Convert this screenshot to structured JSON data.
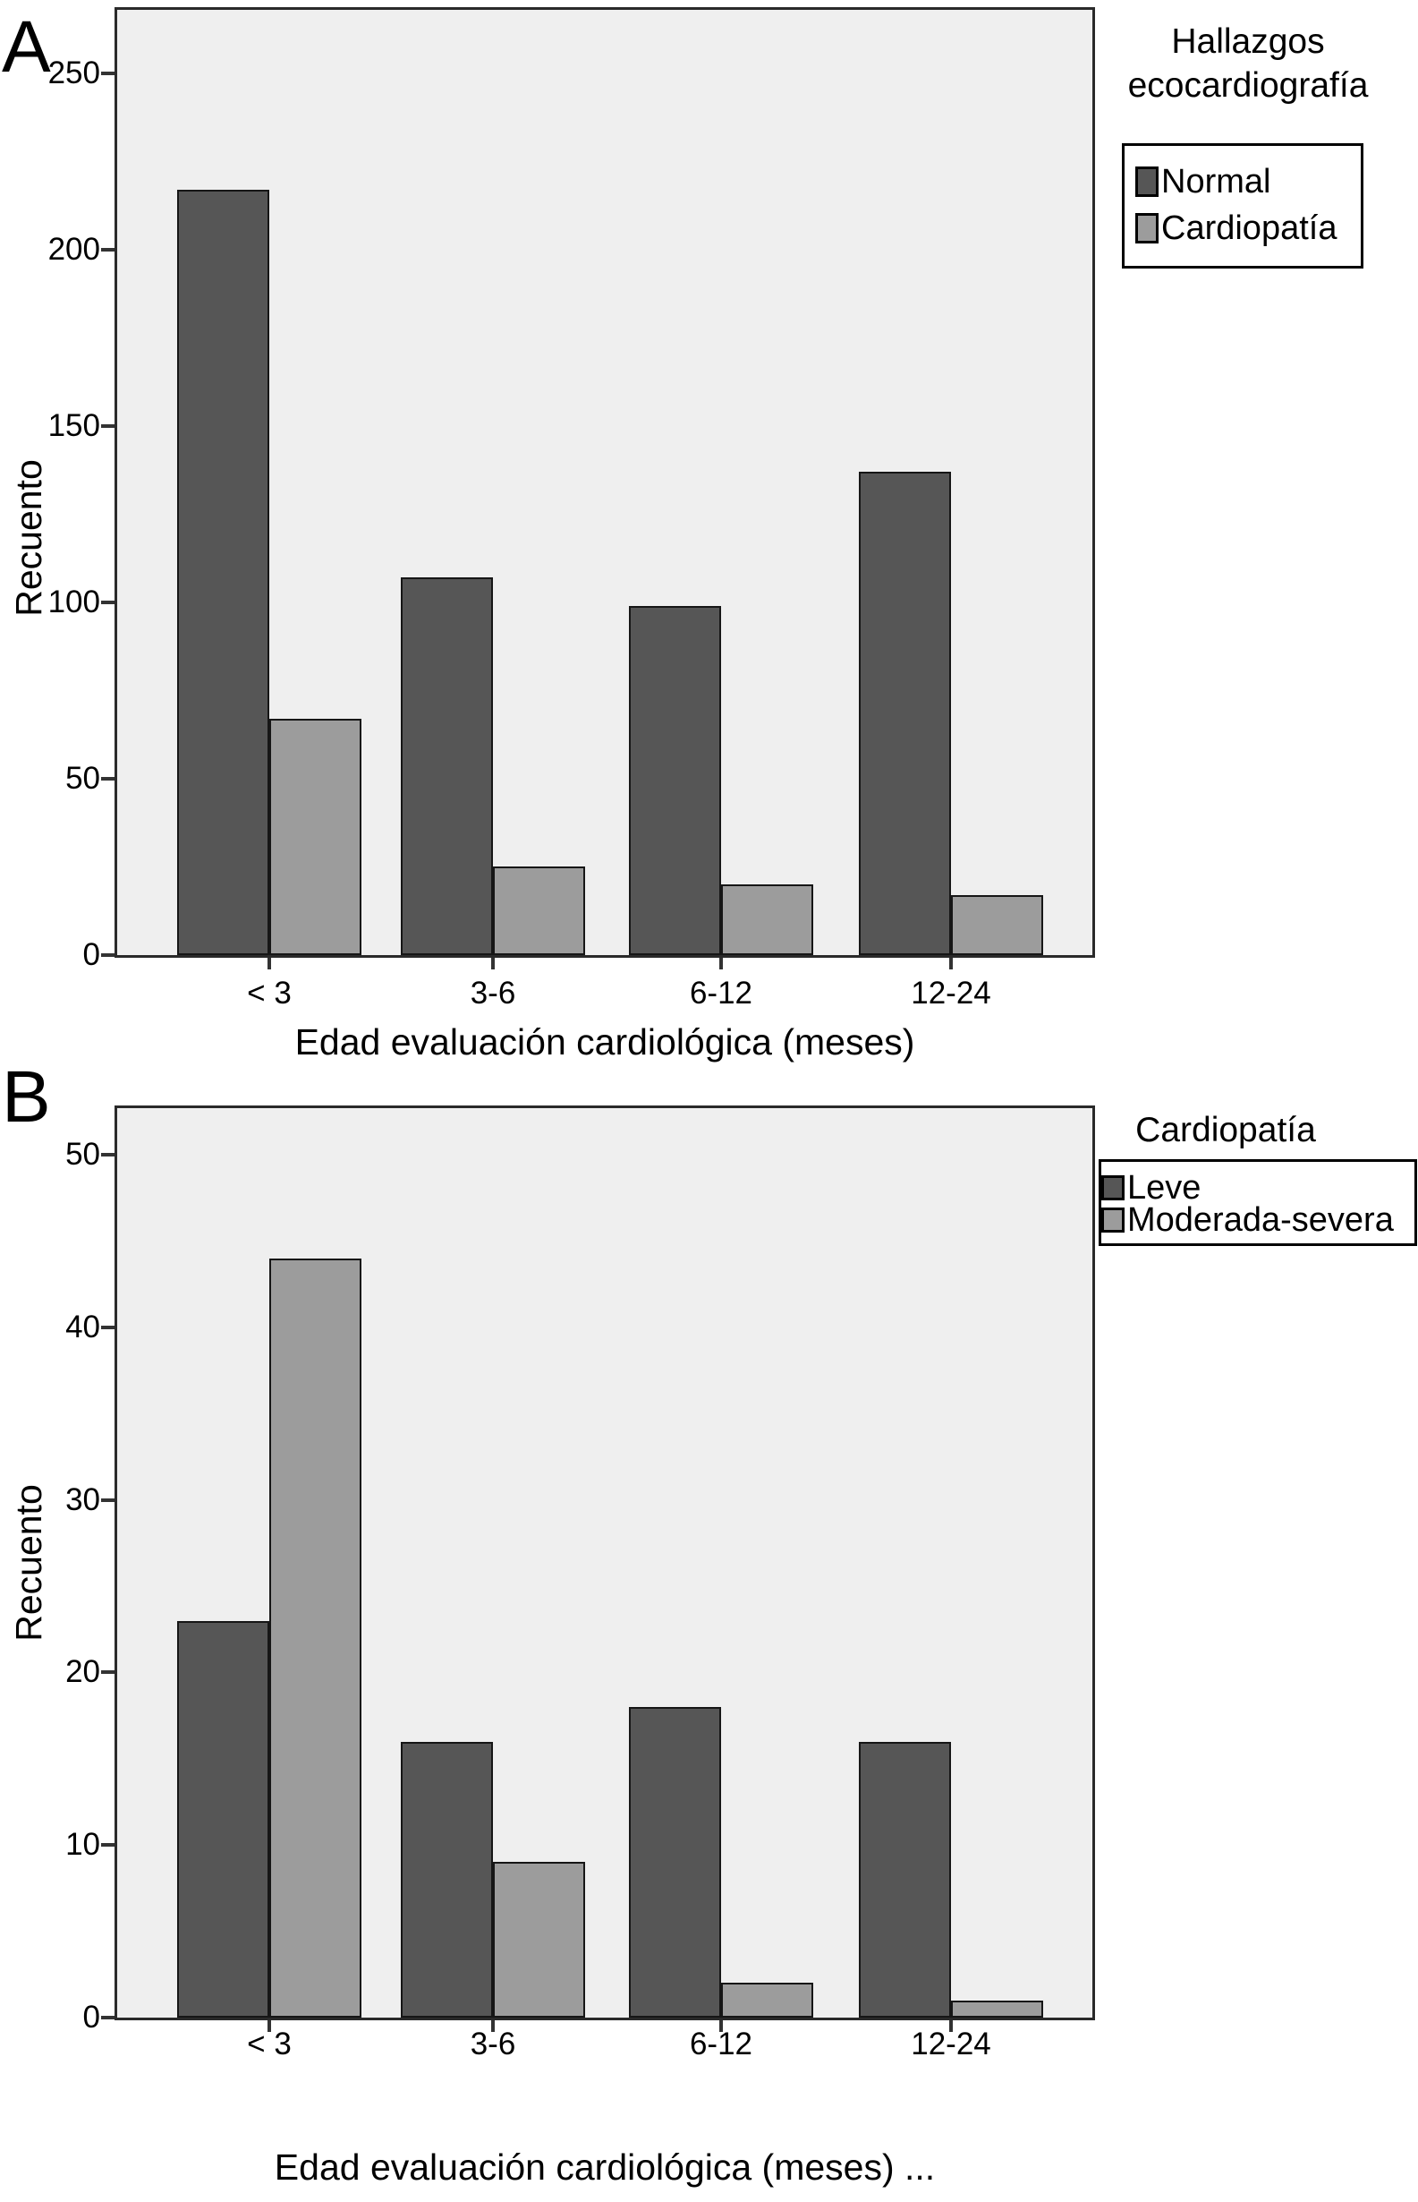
{
  "chart_data": [
    {
      "type": "bar",
      "panel_label": "A",
      "categories": [
        "< 3",
        "3-6",
        "6-12",
        "12-24"
      ],
      "series": [
        {
          "name": "Normal",
          "color_key": "dark",
          "values": [
            217,
            107,
            99,
            137
          ]
        },
        {
          "name": "Cardiopatía",
          "color_key": "light",
          "values": [
            67,
            25,
            20,
            17
          ]
        }
      ],
      "xlabel": "Edad evaluación cardiológica (meses)",
      "ylabel": "Recuento",
      "y_ticks": [
        0,
        50,
        100,
        150,
        200,
        250
      ],
      "ylim": [
        0,
        268
      ],
      "grid": false,
      "legend_position": "top-right-outside",
      "legend": {
        "title_lines": [
          "Hallazgos",
          "ecocardiografía"
        ],
        "items": [
          {
            "label": "Normal",
            "color_key": "dark"
          },
          {
            "label": "Cardiopatía",
            "color_key": "light"
          }
        ]
      }
    },
    {
      "type": "bar",
      "panel_label": "B",
      "categories": [
        "< 3",
        "3-6",
        "6-12",
        "12-24"
      ],
      "series": [
        {
          "name": "Leve",
          "color_key": "dark",
          "values": [
            23,
            16,
            18,
            16
          ]
        },
        {
          "name": "Moderada-severa",
          "color_key": "light",
          "values": [
            44,
            9,
            2,
            1
          ]
        }
      ],
      "xlabel": "Edad evaluación cardiológica (meses) ...",
      "ylabel": "Recuento",
      "y_ticks": [
        0,
        10,
        20,
        30,
        40,
        50
      ],
      "ylim": [
        0,
        52.7
      ],
      "grid": false,
      "legend_position": "top-right-outside",
      "legend": {
        "title_lines": [
          "Cardiopatía"
        ],
        "items": [
          {
            "label": "Leve",
            "color_key": "dark"
          },
          {
            "label": "Moderada-severa",
            "color_key": "light"
          }
        ]
      }
    }
  ],
  "colors": {
    "dark_bar": "#565656",
    "light_bar": "#9c9c9c",
    "plot_bg": "#efefef",
    "frame": "#2a2a2a",
    "bar_border": "#161616",
    "tick": "#333333",
    "text": "#000000",
    "legend_border": "#000000",
    "page_bg": "#ffffff"
  }
}
